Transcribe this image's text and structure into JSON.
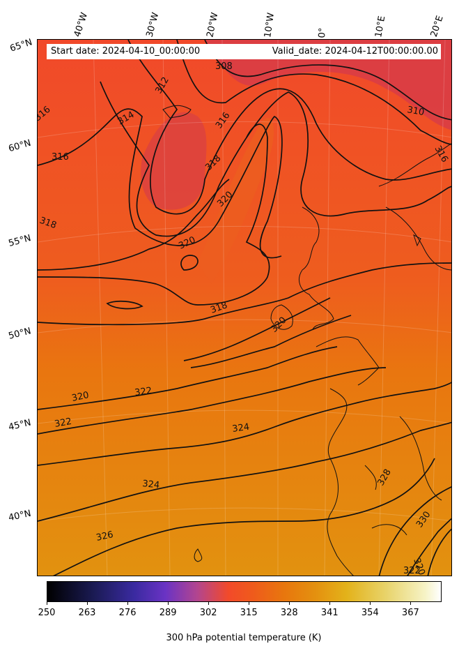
{
  "map": {
    "start_date_text": "Start date: 2024-04-10_00:00:00",
    "valid_date_text": "Valid_date: 2024-04-12T00:00:00.00",
    "longitude_labels": [
      "40°W",
      "30°W",
      "20°W",
      "10°W",
      "0°",
      "10°E",
      "20°E"
    ],
    "latitude_labels": [
      "65°N",
      "60°N",
      "55°N",
      "50°N",
      "45°N",
      "40°N"
    ],
    "contour_labels": [
      "308",
      "310",
      "312",
      "314",
      "316",
      "316",
      "316",
      "316",
      "318",
      "318",
      "318",
      "320",
      "320",
      "320",
      "320",
      "322",
      "322",
      "324",
      "324",
      "326",
      "328",
      "330",
      "320",
      "322"
    ],
    "colors": {
      "cold_region": "#d93d45",
      "mid_region": "#f24a2a",
      "warm_region": "#e8760e",
      "hot_region": "#e49210",
      "contour": "#111111"
    }
  },
  "colorbar": {
    "title": "300 hPa potential temperature (K)",
    "min": 250,
    "max": 377,
    "tick_values": [
      "250",
      "263",
      "276",
      "289",
      "302",
      "315",
      "328",
      "341",
      "354",
      "367"
    ],
    "colormap_name": "CMRmap-like"
  }
}
